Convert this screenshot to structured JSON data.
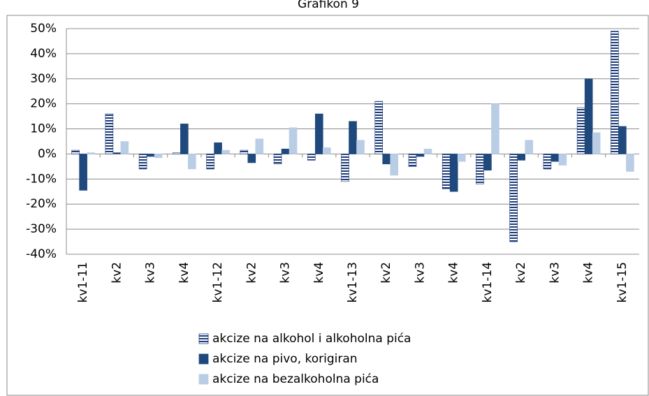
{
  "chart_data": {
    "type": "bar",
    "title": "Grafikon 9",
    "categories": [
      "kv1-11",
      "kv2",
      "kv3",
      "kv4",
      "kv1-12",
      "kv2",
      "kv3",
      "kv4",
      "kv1-13",
      "kv2",
      "kv3",
      "kv4",
      "kv1-14",
      "kv2",
      "kv3",
      "kv4",
      "kv1-15"
    ],
    "series": [
      {
        "name": "akcize na alkohol i alkoholna pića",
        "color": "#1f3d7a",
        "pattern": "horizontal-stripes",
        "values": [
          1.5,
          16,
          -6,
          0.5,
          -6,
          1.5,
          -4,
          -2.5,
          -11,
          21,
          -5,
          -14,
          -12,
          -35,
          -6,
          18.5,
          49
        ]
      },
      {
        "name": "akcize na pivo, korigiran",
        "color": "#1f497d",
        "values": [
          -14.5,
          0.5,
          -1,
          12,
          4.5,
          -3.5,
          2,
          16,
          13,
          -4,
          -1,
          -15,
          -6.5,
          -2.5,
          -3,
          30,
          11
        ]
      },
      {
        "name": "akcize na bezalkoholna pića",
        "color": "#b9cde5",
        "values": [
          0.5,
          5,
          -1.5,
          -6,
          1.5,
          6,
          10.5,
          2.5,
          5.5,
          -8.5,
          2,
          -3,
          20,
          5.5,
          -4.5,
          8.5,
          -7
        ]
      }
    ],
    "ylim": [
      -40,
      50
    ],
    "yticks": [
      {
        "value": -40,
        "label": "-40%"
      },
      {
        "value": -30,
        "label": "-30%"
      },
      {
        "value": -20,
        "label": "-20%"
      },
      {
        "value": -10,
        "label": "-10%"
      },
      {
        "value": 0,
        "label": "0%"
      },
      {
        "value": 10,
        "label": "10%"
      },
      {
        "value": 20,
        "label": "20%"
      },
      {
        "value": 30,
        "label": "30%"
      },
      {
        "value": 40,
        "label": "40%"
      },
      {
        "value": 50,
        "label": "50%"
      }
    ],
    "grid": true,
    "legend": "bottom"
  }
}
